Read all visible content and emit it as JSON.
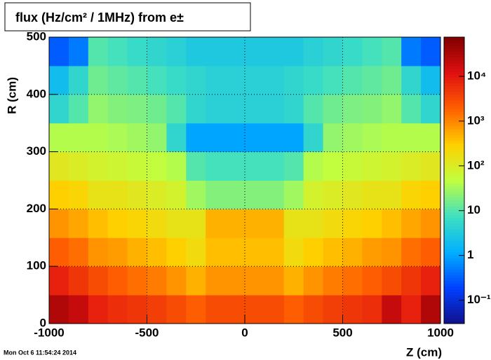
{
  "chart_data": {
    "type": "heatmap",
    "title": "flux (Hz/cm² / 1MHz) from e±",
    "x_label": "Z (cm)",
    "y_label": "R (cm)",
    "footer": "Mon Oct  6 11:54:24 2014",
    "xbins": [
      -1000,
      -900,
      -800,
      -700,
      -600,
      -500,
      -400,
      -300,
      -200,
      -100,
      0,
      100,
      200,
      300,
      400,
      500,
      600,
      700,
      800,
      900,
      1000
    ],
    "ybins": [
      0,
      50,
      100,
      150,
      200,
      250,
      300,
      350,
      400,
      450,
      500
    ],
    "z": [
      [
        30000,
        20000,
        8000,
        6000,
        5000,
        4000,
        3000,
        2000,
        3000,
        3000,
        3000,
        3000,
        2000,
        3000,
        4000,
        5000,
        6000,
        20000,
        8000,
        30000
      ],
      [
        8000,
        5000,
        3000,
        2000,
        1500,
        1200,
        800,
        500,
        800,
        800,
        800,
        800,
        500,
        800,
        1200,
        1500,
        2000,
        3000,
        5000,
        8000
      ],
      [
        2000,
        1500,
        800,
        700,
        500,
        400,
        300,
        200,
        400,
        400,
        400,
        400,
        200,
        300,
        400,
        500,
        700,
        800,
        1500,
        2000
      ],
      [
        800,
        600,
        400,
        300,
        250,
        200,
        150,
        150,
        500,
        500,
        500,
        500,
        150,
        150,
        200,
        250,
        300,
        400,
        600,
        800
      ],
      [
        300,
        250,
        150,
        150,
        120,
        100,
        80,
        30,
        20,
        20,
        20,
        20,
        30,
        80,
        100,
        120,
        150,
        150,
        250,
        300
      ],
      [
        120,
        100,
        80,
        70,
        60,
        50,
        40,
        10,
        8,
        8,
        8,
        8,
        10,
        40,
        50,
        60,
        70,
        80,
        100,
        120
      ],
      [
        40,
        40,
        40,
        35,
        30,
        25,
        5,
        1,
        1,
        1,
        1,
        1,
        1,
        5,
        25,
        30,
        35,
        40,
        40,
        40
      ],
      [
        5,
        10,
        25,
        20,
        18,
        15,
        10,
        5,
        4,
        4,
        4,
        4,
        5,
        10,
        15,
        18,
        20,
        25,
        10,
        5
      ],
      [
        2,
        5,
        15,
        12,
        10,
        8,
        6,
        5,
        4,
        4,
        4,
        4,
        5,
        6,
        8,
        10,
        12,
        15,
        5,
        2
      ],
      [
        0.3,
        0.5,
        10,
        8,
        6,
        5,
        4,
        3,
        3,
        3,
        3,
        3,
        3,
        4,
        5,
        6,
        8,
        10,
        0.5,
        0.3
      ]
    ],
    "xlim": [
      -1000,
      1000
    ],
    "xticks": [
      -1000,
      -500,
      0,
      500,
      1000
    ],
    "ylim": [
      0,
      500
    ],
    "yticks": [
      0,
      100,
      200,
      300,
      400,
      500
    ],
    "zlim": [
      0.03,
      75000
    ],
    "log_z": true,
    "zticks": [
      {
        "value": 0.1,
        "label": "10⁻¹"
      },
      1,
      10,
      {
        "value": 100,
        "label": "10²"
      },
      {
        "value": 1000,
        "label": "10³"
      },
      {
        "value": 10000,
        "label": "10⁴"
      }
    ],
    "colormap": [
      "#10108a",
      "#0040ff",
      "#00b0ff",
      "#40e0c0",
      "#c0ff40",
      "#ffd000",
      "#ff6000",
      "#e01010",
      "#800000"
    ],
    "grid": true
  }
}
